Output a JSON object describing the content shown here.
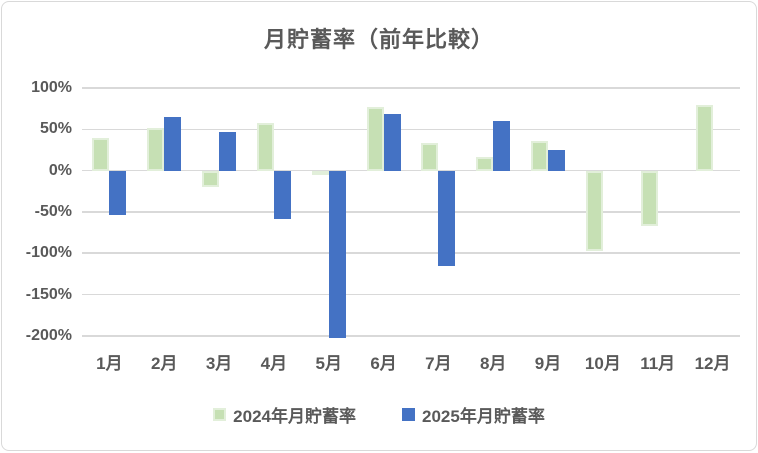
{
  "chart_title": "月貯蓄率（前年比較）",
  "colors": {
    "series_2024_fill": "#c6e0b4",
    "series_2024_border": "#e2efda",
    "series_2025_fill": "#4472c4",
    "gridline": "#d9d9d9",
    "label_text": "#595959",
    "frame_border": "#d9d9d9",
    "background": "#ffffff"
  },
  "chart_data": {
    "type": "bar",
    "title": "月貯蓄率（前年比較）",
    "xlabel": "",
    "ylabel": "",
    "categories": [
      "1月",
      "2月",
      "3月",
      "4月",
      "5月",
      "6月",
      "7月",
      "8月",
      "9月",
      "10月",
      "11月",
      "12月"
    ],
    "series": [
      {
        "name": "2024年月貯蓄率",
        "color": "#c6e0b4",
        "border_color": "#e2efda",
        "values": [
          40,
          52,
          -20,
          58,
          -3,
          77,
          34,
          16,
          36,
          -97,
          -67,
          79
        ]
      },
      {
        "name": "2025年月貯蓄率",
        "color": "#4472c4",
        "border_color": null,
        "values": [
          -54,
          65,
          47,
          -58,
          -202,
          68,
          -116,
          60,
          25,
          null,
          null,
          null
        ]
      }
    ],
    "ylim": [
      -205,
      100
    ],
    "yticks": [
      100,
      50,
      0,
      -50,
      -100,
      -150,
      -200
    ],
    "ytick_labels": [
      "100%",
      "50%",
      "0%",
      "-50%",
      "-100%",
      "-150%",
      "-200%"
    ],
    "grid": true,
    "legend_position": "bottom"
  }
}
